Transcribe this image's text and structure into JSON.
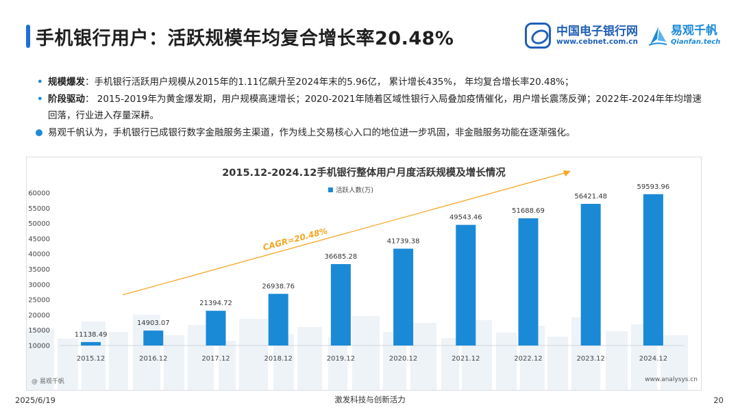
{
  "header": {
    "title": "手机银行用户：活跃规模年均复合增长率20.48%"
  },
  "logos": {
    "cebnet_cn": "中国电子银行网",
    "cebnet_url": "www.cebnet.com.cn",
    "qianfan_cn": "易观千帆",
    "qianfan_en": "Qianfan.tech"
  },
  "bullets": [
    {
      "label": "规模爆发",
      "text": "：手机银行活跃用户规模从2015年的1.11亿飙升至2024年末的5.96亿， 累计增长435%， 年均复合增长率20.48%；"
    },
    {
      "label": "阶段驱动",
      "text": "： 2015-2019年为黄金爆发期，用户规模高速增长；2020-2021年随着区域性银行入局叠加疫情催化，用户增长震荡反弹；2022年-2024年年均增速回落，行业进入存量深耕。"
    },
    {
      "label": "",
      "text": "易观千帆认为，手机银行已成银行数字金融服务主渠道，作为线上交易核心入口的地位进一步巩固，非金融服务功能在逐渐强化。"
    }
  ],
  "chart_data": {
    "type": "bar",
    "title": "2015.12-2024.12手机银行整体用户月度活跃规模及增长情况",
    "series": [
      {
        "name": "活跃人数(万)",
        "values": [
          11138.49,
          14903.07,
          21394.72,
          26938.76,
          36685.28,
          41739.38,
          49543.46,
          51688.69,
          56421.48,
          59593.96
        ]
      }
    ],
    "categories": [
      "2015.12",
      "2016.12",
      "2017.12",
      "2018.12",
      "2019.12",
      "2020.12",
      "2021.12",
      "2022.12",
      "2023.12",
      "2024.12"
    ],
    "data_labels": [
      "11138.49",
      "14903.07",
      "21394.72",
      "26938.76",
      "36685.28",
      "41739.38",
      "49543.46",
      "51688.69",
      "56421.48",
      "59593.96"
    ],
    "y_ticks": [
      "10000",
      "15000",
      "20000",
      "25000",
      "30000",
      "35000",
      "40000",
      "45000",
      "50000",
      "55000",
      "60000"
    ],
    "ylim": [
      10000,
      60000
    ],
    "annotation": "CAGR=20.48%",
    "legend": "top-center",
    "colors": {
      "bar": "#1b8ad6",
      "trend": "#f5a623"
    }
  },
  "footer": {
    "source": "@ 易观千帆",
    "site": "www.analysys.cn",
    "date": "2025/6/19",
    "slogan": "激发科技与创新活力",
    "page": "20"
  }
}
